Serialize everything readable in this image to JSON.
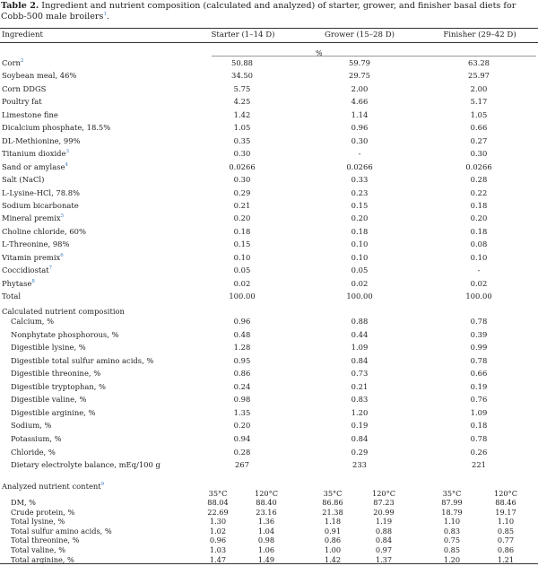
{
  "caption": {
    "label": "Table 2.",
    "text": " Ingredient and nutrient composition (calculated and analyzed) of starter, grower, and finisher basal diets for Cobb-500 male broilers",
    "footnote": "1",
    "tail": "."
  },
  "header": {
    "ingredient": "Ingredient",
    "starter": "Starter (1–14 D)",
    "grower": "Grower (15–28 D)",
    "finisher": "Finisher (29–42 D)"
  },
  "unit": "%",
  "ingredients": [
    {
      "name": "Corn",
      "fn": "2",
      "s": "50.88",
      "g": "59.79",
      "f": "63.28"
    },
    {
      "name": "Soybean meal, 46%",
      "fn": "",
      "s": "34.50",
      "g": "29.75",
      "f": "25.97"
    },
    {
      "name": "Corn DDGS",
      "fn": "",
      "s": "5.75",
      "g": "2.00",
      "f": "2.00"
    },
    {
      "name": "Poultry fat",
      "fn": "",
      "s": "4.25",
      "g": "4.66",
      "f": "5.17"
    },
    {
      "name": "Limestone fine",
      "fn": "",
      "s": "1.42",
      "g": "1.14",
      "f": "1.05"
    },
    {
      "name": "Dicalcium phosphate, 18.5%",
      "fn": "",
      "s": "1.05",
      "g": "0.96",
      "f": "0.66"
    },
    {
      "name": "DL-Methionine, 99%",
      "fn": "",
      "s": "0.35",
      "g": "0.30",
      "f": "0.27"
    },
    {
      "name": "Titanium dioxide",
      "fn": "3",
      "s": "0.30",
      "g": "-",
      "f": "0.30"
    },
    {
      "name": "Sand or amylase",
      "fn": "4",
      "s": "0.0266",
      "g": "0.0266",
      "f": "0.0266"
    },
    {
      "name": "Salt (NaCl)",
      "fn": "",
      "s": "0.30",
      "g": "0.33",
      "f": "0.28"
    },
    {
      "name": "L-Lysine-HCl, 78.8%",
      "fn": "",
      "s": "0.29",
      "g": "0.23",
      "f": "0.22"
    },
    {
      "name": "Sodium bicarbonate",
      "fn": "",
      "s": "0.21",
      "g": "0.15",
      "f": "0.18"
    },
    {
      "name": "Mineral premix",
      "fn": "5",
      "s": "0.20",
      "g": "0.20",
      "f": "0.20"
    },
    {
      "name": "Choline chloride, 60%",
      "fn": "",
      "s": "0.18",
      "g": "0.18",
      "f": "0.18"
    },
    {
      "name": "L-Threonine, 98%",
      "fn": "",
      "s": "0.15",
      "g": "0.10",
      "f": "0.08"
    },
    {
      "name": "Vitamin premix",
      "fn": "6",
      "s": "0.10",
      "g": "0.10",
      "f": "0.10"
    },
    {
      "name": "Coccidiostat",
      "fn": "7",
      "s": "0.05",
      "g": "0.05",
      "f": "-"
    },
    {
      "name": "Phytase",
      "fn": "8",
      "s": "0.02",
      "g": "0.02",
      "f": "0.02"
    },
    {
      "name": "Total",
      "fn": "",
      "s": "100.00",
      "g": "100.00",
      "f": "100.00"
    }
  ],
  "calculated": {
    "title": "Calculated nutrient composition",
    "rows": [
      {
        "name": "Calcium, %",
        "s": "0.96",
        "g": "0.88",
        "f": "0.78"
      },
      {
        "name": "Nonphytate phosphorous, %",
        "s": "0.48",
        "g": "0.44",
        "f": "0.39"
      },
      {
        "name": "Digestible lysine, %",
        "s": "1.28",
        "g": "1.09",
        "f": "0.99"
      },
      {
        "name": "Digestible total sulfur amino acids, %",
        "s": "0.95",
        "g": "0.84",
        "f": "0.78"
      },
      {
        "name": "Digestible threonine, %",
        "s": "0.86",
        "g": "0.73",
        "f": "0.66"
      },
      {
        "name": "Digestible tryptophan, %",
        "s": "0.24",
        "g": "0.21",
        "f": "0.19"
      },
      {
        "name": "Digestible valine, %",
        "s": "0.98",
        "g": "0.83",
        "f": "0.76"
      },
      {
        "name": "Digestible arginine, %",
        "s": "1.35",
        "g": "1.20",
        "f": "1.09"
      },
      {
        "name": "Sodium, %",
        "s": "0.20",
        "g": "0.19",
        "f": "0.18"
      },
      {
        "name": "Potassium, %",
        "s": "0.94",
        "g": "0.84",
        "f": "0.78"
      },
      {
        "name": "Chloride, %",
        "s": "0.28",
        "g": "0.29",
        "f": "0.26"
      },
      {
        "name": "Dietary electrolyte balance, mEq/100 g",
        "s": "267",
        "g": "233",
        "f": "221"
      }
    ]
  },
  "analyzed": {
    "title": "Analyzed nutrient content",
    "fn": "9",
    "temps": [
      "35°C",
      "120°C",
      "35°C",
      "120°C",
      "35°C",
      "120°C"
    ],
    "rows": [
      {
        "name": "DM, %",
        "v": [
          "88.04",
          "88.40",
          "86.86",
          "87.23",
          "87.99",
          "88.46"
        ]
      },
      {
        "name": "Crude protein, %",
        "v": [
          "22.69",
          "23.16",
          "21.38",
          "20.99",
          "18.79",
          "19.17"
        ]
      },
      {
        "name": "Total lysine, %",
        "v": [
          "1.30",
          "1.36",
          "1.18",
          "1.19",
          "1.10",
          "1.10"
        ]
      },
      {
        "name": "Total sulfur amino acids, %",
        "v": [
          "1.02",
          "1.04",
          "0.91",
          "0.88",
          "0.83",
          "0.85"
        ]
      },
      {
        "name": "Total threonine, %",
        "v": [
          "0.96",
          "0.98",
          "0.86",
          "0.84",
          "0.75",
          "0.77"
        ]
      },
      {
        "name": "Total valine, %",
        "v": [
          "1.03",
          "1.06",
          "1.00",
          "0.97",
          "0.85",
          "0.86"
        ]
      },
      {
        "name": "Total arginine, %",
        "v": [
          "1.47",
          "1.49",
          "1.42",
          "1.37",
          "1.20",
          "1.21"
        ]
      }
    ]
  }
}
